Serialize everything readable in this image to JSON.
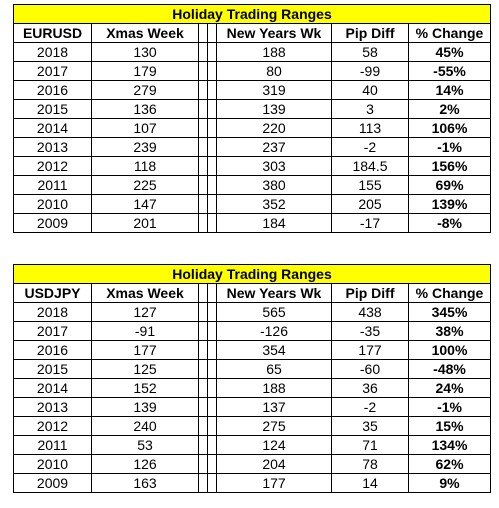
{
  "tables": [
    {
      "title": "Holiday Trading Ranges",
      "headers": [
        "EURUSD",
        "Xmas Week",
        "",
        "",
        "New Years Wk",
        "Pip Diff",
        "% Change"
      ],
      "rows": [
        [
          "2018",
          "130",
          "188",
          "58",
          "45%"
        ],
        [
          "2017",
          "179",
          "80",
          "-99",
          "-55%"
        ],
        [
          "2016",
          "279",
          "319",
          "40",
          "14%"
        ],
        [
          "2015",
          "136",
          "139",
          "3",
          "2%"
        ],
        [
          "2014",
          "107",
          "220",
          "113",
          "106%"
        ],
        [
          "2013",
          "239",
          "237",
          "-2",
          "-1%"
        ],
        [
          "2012",
          "118",
          "303",
          "184.5",
          "156%"
        ],
        [
          "2011",
          "225",
          "380",
          "155",
          "69%"
        ],
        [
          "2010",
          "147",
          "352",
          "205",
          "139%"
        ],
        [
          "2009",
          "201",
          "184",
          "-17",
          "-8%"
        ]
      ]
    },
    {
      "title": "Holiday Trading Ranges",
      "headers": [
        "USDJPY",
        "Xmas Week",
        "",
        "",
        "New Years Wk",
        "Pip Diff",
        "% Change"
      ],
      "rows": [
        [
          "2018",
          "127",
          "565",
          "438",
          "345%"
        ],
        [
          "2017",
          "-91",
          "-126",
          "-35",
          "38%"
        ],
        [
          "2016",
          "177",
          "354",
          "177",
          "100%"
        ],
        [
          "2015",
          "125",
          "65",
          "-60",
          "-48%"
        ],
        [
          "2014",
          "152",
          "188",
          "36",
          "24%"
        ],
        [
          "2013",
          "139",
          "137",
          "-2",
          "-1%"
        ],
        [
          "2012",
          "240",
          "275",
          "35",
          "15%"
        ],
        [
          "2011",
          "53",
          "124",
          "71",
          "134%"
        ],
        [
          "2010",
          "126",
          "204",
          "78",
          "62%"
        ],
        [
          "2009",
          "163",
          "177",
          "14",
          "9%"
        ]
      ]
    }
  ]
}
